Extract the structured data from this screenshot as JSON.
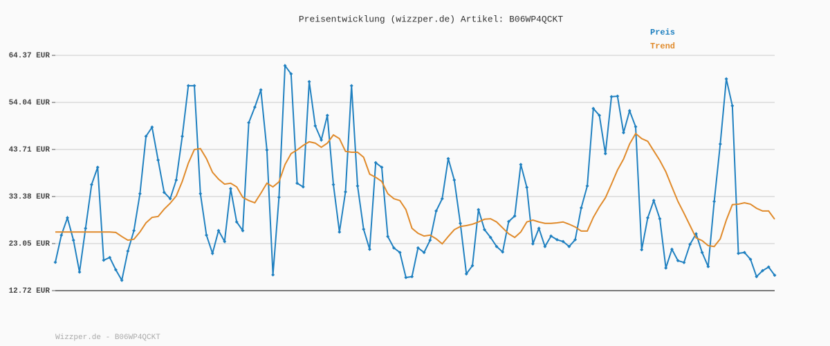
{
  "chart_data": {
    "type": "line",
    "title": "Preisentwicklung (wizzper.de) Artikel: B06WP4QCKT",
    "footer": "Wizzper.de - B06WP4QCKT",
    "ylim": [
      12.72,
      64.37
    ],
    "yticks": [
      {
        "value": 12.72,
        "label": "12.72 EUR"
      },
      {
        "value": 23.05,
        "label": "23.05 EUR"
      },
      {
        "value": 33.38,
        "label": "33.38 EUR"
      },
      {
        "value": 43.71,
        "label": "43.71 EUR"
      },
      {
        "value": 54.04,
        "label": "54.04 EUR"
      },
      {
        "value": 64.37,
        "label": "64.37 EUR"
      }
    ],
    "grid": true,
    "legend": "top-right",
    "series": [
      {
        "name": "Preis",
        "color": "#1f80c0",
        "markers": true,
        "values": [
          18.95,
          24.9,
          28.7,
          23.8,
          16.8,
          26.4,
          36.0,
          39.8,
          19.4,
          20.0,
          17.3,
          15.0,
          21.4,
          25.9,
          34.0,
          46.6,
          48.6,
          41.4,
          34.3,
          32.9,
          37.0,
          46.6,
          57.7,
          57.7,
          34.0,
          24.9,
          20.9,
          25.9,
          23.5,
          35.1,
          27.8,
          25.9,
          49.6,
          53.0,
          56.8,
          43.6,
          16.2,
          33.2,
          62.1,
          60.3,
          36.3,
          35.5,
          58.6,
          48.9,
          45.8,
          51.2,
          36.0,
          25.6,
          34.4,
          57.7,
          35.7,
          26.2,
          21.8,
          40.8,
          39.8,
          24.6,
          22.1,
          21.1,
          15.6,
          15.8,
          22.1,
          21.1,
          23.8,
          30.2,
          32.9,
          41.7,
          37.0,
          27.5,
          16.4,
          18.2,
          30.5,
          26.1,
          24.4,
          22.4,
          21.2,
          27.9,
          29.1,
          40.4,
          35.4,
          23.0,
          26.4,
          22.4,
          24.7,
          23.9,
          23.5,
          22.4,
          23.9,
          30.9,
          35.7,
          52.7,
          51.2,
          42.8,
          55.3,
          55.4,
          47.4,
          52.2,
          48.7,
          21.7,
          28.7,
          32.5,
          28.5,
          17.7,
          21.8,
          19.3,
          18.9,
          22.9,
          25.2,
          21.1,
          18.0,
          32.3,
          44.9,
          59.2,
          53.3,
          20.9,
          21.1,
          19.6,
          15.8,
          17.1,
          17.9,
          16.1
        ]
      },
      {
        "name": "Trend",
        "color": "#e08a2a",
        "markers": false,
        "values": [
          25.6,
          25.6,
          25.6,
          25.6,
          25.6,
          25.6,
          25.6,
          25.6,
          25.6,
          25.6,
          25.5,
          24.6,
          23.8,
          24.0,
          25.6,
          27.6,
          28.8,
          29.0,
          30.6,
          31.9,
          33.5,
          36.7,
          40.7,
          43.7,
          43.9,
          41.7,
          38.7,
          37.2,
          36.1,
          36.3,
          35.5,
          33.2,
          32.5,
          32.0,
          34.1,
          36.3,
          35.5,
          36.6,
          40.4,
          42.8,
          43.6,
          44.6,
          45.4,
          45.1,
          44.2,
          45.1,
          46.9,
          46.1,
          43.3,
          43.1,
          43.1,
          42.0,
          38.3,
          37.6,
          36.7,
          34.0,
          32.9,
          32.5,
          30.5,
          26.4,
          25.3,
          24.7,
          24.9,
          24.1,
          23.0,
          24.6,
          26.1,
          26.8,
          27.0,
          27.3,
          27.8,
          28.4,
          28.5,
          27.8,
          26.5,
          25.2,
          24.4,
          25.6,
          27.8,
          28.2,
          27.8,
          27.5,
          27.5,
          27.6,
          27.8,
          27.3,
          26.7,
          25.8,
          25.8,
          28.8,
          31.1,
          33.1,
          36.1,
          39.2,
          41.6,
          44.9,
          47.2,
          46.1,
          45.5,
          43.4,
          41.3,
          38.8,
          35.5,
          32.3,
          29.7,
          27.0,
          24.3,
          23.7,
          22.6,
          22.4,
          24.1,
          28.2,
          31.6,
          31.7,
          32.0,
          31.7,
          30.8,
          30.2,
          30.2,
          28.4
        ]
      }
    ]
  }
}
